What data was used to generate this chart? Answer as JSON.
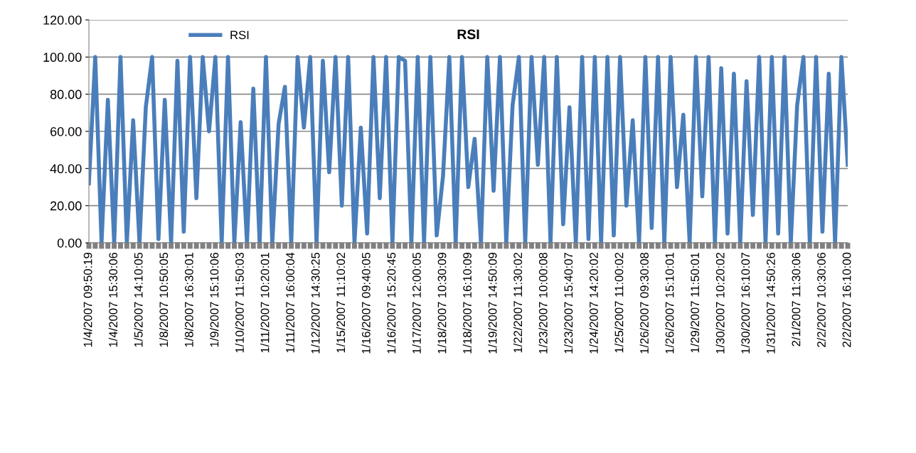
{
  "chart_data": {
    "type": "line",
    "title": "RSI",
    "categories": [
      "1/4/2007 09:50:19",
      null,
      null,
      null,
      "1/4/2007 15:30:06",
      null,
      null,
      null,
      "1/5/2007 14:10:05",
      null,
      null,
      null,
      "1/8/2007 10:50:05",
      null,
      null,
      null,
      "1/8/2007 16:30:01",
      null,
      null,
      null,
      "1/9/2007 15:10:06",
      null,
      null,
      null,
      "1/10/2007 11:50:03",
      null,
      null,
      null,
      "1/11/2007 10:20:01",
      null,
      null,
      null,
      "1/11/2007 16:00:04",
      null,
      null,
      null,
      "1/12/2007 14:30:25",
      null,
      null,
      null,
      "1/15/2007 11:10:02",
      null,
      null,
      null,
      "1/16/2007 09:40:05",
      null,
      null,
      null,
      "1/16/2007 15:20:45",
      null,
      null,
      null,
      "1/17/2007 12:00:05",
      null,
      null,
      null,
      "1/18/2007 10:30:09",
      null,
      null,
      null,
      "1/18/2007 16:10:09",
      null,
      null,
      null,
      "1/19/2007 14:50:09",
      null,
      null,
      null,
      "1/22/2007 11:30:02",
      null,
      null,
      null,
      "1/23/2007 10:00:08",
      null,
      null,
      null,
      "1/23/2007 15:40:07",
      null,
      null,
      null,
      "1/24/2007 14:20:02",
      null,
      null,
      null,
      "1/25/2007 11:00:02",
      null,
      null,
      null,
      "1/26/2007 09:30:08",
      null,
      null,
      null,
      "1/26/2007 15:10:01",
      null,
      null,
      null,
      "1/29/2007 11:50:01",
      null,
      null,
      null,
      "1/30/2007 10:20:02",
      null,
      null,
      null,
      "1/30/2007 16:10:07",
      null,
      null,
      null,
      "1/31/2007 14:50:26",
      null,
      null,
      null,
      "2/1/2007 11:30:06",
      null,
      null,
      null,
      "2/2/2007 10:30:06",
      null,
      null,
      null,
      "2/2/2007 16:10:00"
    ],
    "series": [
      {
        "name": "RSI",
        "color": "#4a7ebb",
        "values": [
          32,
          100,
          0,
          77,
          0,
          100,
          0,
          66,
          0,
          73,
          100,
          2,
          77,
          0,
          98,
          6,
          100,
          24,
          100,
          60,
          100,
          0,
          100,
          0,
          65,
          0,
          83,
          0,
          100,
          0,
          64,
          84,
          0,
          100,
          62,
          100,
          0,
          98,
          38,
          100,
          20,
          100,
          0,
          62,
          5,
          100,
          24,
          100,
          0,
          100,
          98,
          0,
          100,
          0,
          100,
          4,
          36,
          100,
          0,
          100,
          30,
          56,
          0,
          100,
          28,
          100,
          0,
          74,
          100,
          0,
          100,
          42,
          100,
          0,
          100,
          10,
          73,
          0,
          100,
          2,
          100,
          0,
          100,
          4,
          100,
          20,
          66,
          0,
          100,
          8,
          100,
          0,
          100,
          30,
          69,
          0,
          100,
          25,
          100,
          0,
          94,
          5,
          91,
          0,
          87,
          15,
          100,
          0,
          100,
          5,
          100,
          0,
          74,
          100,
          0,
          100,
          6,
          91,
          0,
          100,
          42
        ]
      }
    ],
    "ylim": [
      0,
      120
    ],
    "yticks": [
      {
        "value": 0,
        "label": "0.00"
      },
      {
        "value": 20,
        "label": "20.00"
      },
      {
        "value": 40,
        "label": "40.00"
      },
      {
        "value": 60,
        "label": "60.00"
      },
      {
        "value": 80,
        "label": "80.00"
      },
      {
        "value": 100,
        "label": "100.00"
      },
      {
        "value": 120,
        "label": "120.00"
      }
    ],
    "grid": "y",
    "legend": "top left",
    "line_style": "solid",
    "marker": "none"
  }
}
